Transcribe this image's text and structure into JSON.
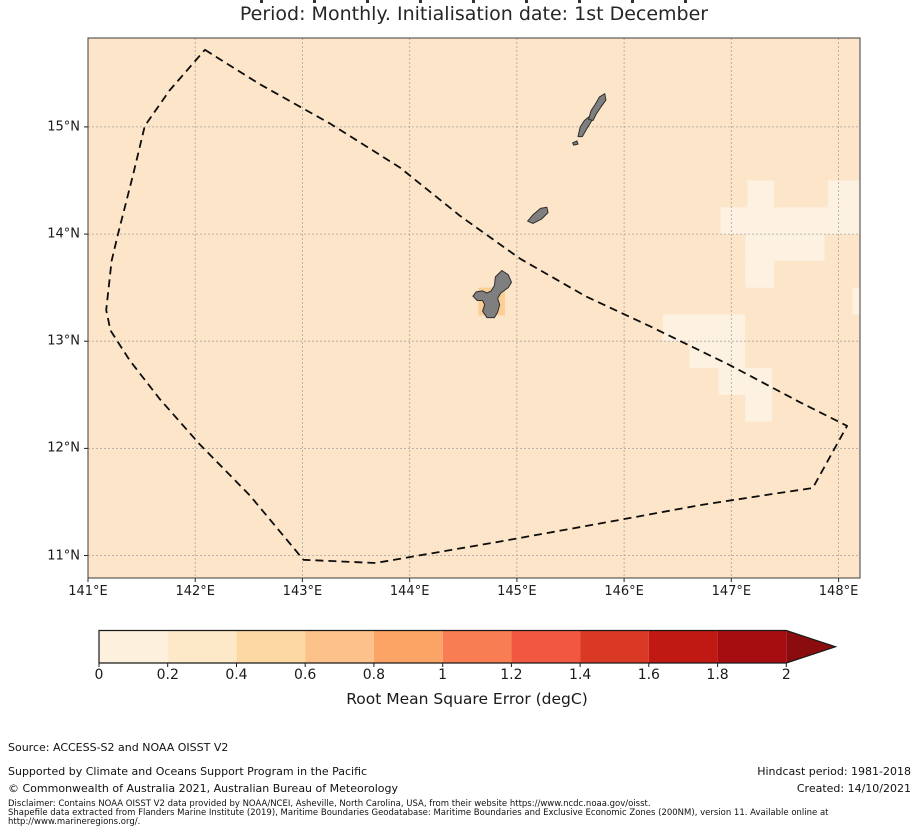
{
  "title": {
    "text": "Period: Monthly. Initialisation date: 1st December"
  },
  "map": {
    "xlim": [
      141.0,
      148.2
    ],
    "ylim": [
      10.79,
      15.83
    ],
    "x_ticks": [
      "141°E",
      "142°E",
      "143°E",
      "144°E",
      "145°E",
      "146°E",
      "147°E",
      "148°E"
    ],
    "x_tick_values": [
      141,
      142,
      143,
      144,
      145,
      146,
      147,
      148
    ],
    "y_ticks": [
      "15°N",
      "14°N",
      "13°N",
      "12°N",
      "11°N"
    ],
    "y_tick_values": [
      15,
      14,
      13,
      12,
      11
    ],
    "colors": {
      "ocean_base": "#fce5c8",
      "light_patch": "#fdf2e2",
      "guam_cell": "#fbcf96",
      "island_fill": "#7f7f7f",
      "island_stroke": "#2f2f2f",
      "grid": "#999999",
      "eez": "#0d0d0d",
      "spine": "#3c3c3c"
    },
    "light_patches": [
      [
        147.15,
        14.25,
        147.4,
        14.5
      ],
      [
        147.9,
        14.25,
        148.2,
        14.5
      ],
      [
        146.9,
        14.0,
        148.2,
        14.25
      ],
      [
        147.13,
        13.75,
        147.87,
        14.0
      ],
      [
        147.13,
        13.5,
        147.4,
        13.75
      ],
      [
        148.13,
        13.25,
        148.2,
        13.5
      ],
      [
        146.36,
        13.0,
        147.13,
        13.25
      ],
      [
        146.61,
        12.75,
        147.13,
        13.0
      ],
      [
        146.88,
        12.5,
        147.38,
        12.75
      ],
      [
        147.13,
        12.25,
        147.38,
        12.5
      ]
    ],
    "highlight_cells": [
      [
        144.64,
        13.24,
        144.89,
        13.5
      ]
    ],
    "eez_polygon": [
      [
        142.09,
        15.72
      ],
      [
        142.6,
        15.4
      ],
      [
        143.26,
        15.03
      ],
      [
        143.91,
        14.62
      ],
      [
        144.47,
        14.17
      ],
      [
        145.03,
        13.77
      ],
      [
        145.64,
        13.42
      ],
      [
        146.24,
        13.14
      ],
      [
        146.98,
        12.78
      ],
      [
        147.64,
        12.43
      ],
      [
        148.08,
        12.21
      ],
      [
        147.76,
        11.63
      ],
      [
        147.36,
        11.57
      ],
      [
        146.71,
        11.47
      ],
      [
        145.78,
        11.3
      ],
      [
        144.84,
        11.13
      ],
      [
        143.68,
        10.93
      ],
      [
        143.01,
        10.96
      ],
      [
        142.51,
        11.56
      ],
      [
        142.04,
        12.04
      ],
      [
        141.67,
        12.46
      ],
      [
        141.39,
        12.82
      ],
      [
        141.21,
        13.1
      ],
      [
        141.17,
        13.29
      ],
      [
        141.22,
        13.75
      ],
      [
        141.28,
        14.0
      ],
      [
        141.42,
        14.55
      ],
      [
        141.53,
        15.01
      ],
      [
        141.76,
        15.34
      ]
    ],
    "islands": {
      "guam": [
        [
          144.86,
          13.66
        ],
        [
          144.92,
          13.62
        ],
        [
          144.95,
          13.55
        ],
        [
          144.92,
          13.5
        ],
        [
          144.85,
          13.45
        ],
        [
          144.82,
          13.4
        ],
        [
          144.84,
          13.34
        ],
        [
          144.82,
          13.27
        ],
        [
          144.79,
          13.22
        ],
        [
          144.72,
          13.22
        ],
        [
          144.68,
          13.28
        ],
        [
          144.7,
          13.34
        ],
        [
          144.68,
          13.38
        ],
        [
          144.63,
          13.38
        ],
        [
          144.59,
          13.42
        ],
        [
          144.62,
          13.46
        ],
        [
          144.68,
          13.47
        ],
        [
          144.72,
          13.45
        ],
        [
          144.76,
          13.47
        ],
        [
          144.79,
          13.52
        ],
        [
          144.8,
          13.6
        ]
      ],
      "rota": [
        [
          145.1,
          14.12
        ],
        [
          145.15,
          14.18
        ],
        [
          145.22,
          14.24
        ],
        [
          145.28,
          14.25
        ],
        [
          145.29,
          14.2
        ],
        [
          145.23,
          14.14
        ],
        [
          145.15,
          14.1
        ]
      ],
      "aguijan": [
        [
          145.52,
          14.85
        ],
        [
          145.56,
          14.87
        ],
        [
          145.57,
          14.84
        ],
        [
          145.53,
          14.83
        ]
      ],
      "tinian": [
        [
          145.57,
          14.91
        ],
        [
          145.59,
          15.0
        ],
        [
          145.63,
          15.06
        ],
        [
          145.68,
          15.1
        ],
        [
          145.7,
          15.06
        ],
        [
          145.65,
          14.98
        ],
        [
          145.61,
          14.91
        ]
      ],
      "saipan": [
        [
          145.67,
          15.07
        ],
        [
          145.69,
          15.15
        ],
        [
          145.73,
          15.21
        ],
        [
          145.77,
          15.28
        ],
        [
          145.82,
          15.31
        ],
        [
          145.83,
          15.25
        ],
        [
          145.78,
          15.18
        ],
        [
          145.74,
          15.12
        ],
        [
          145.71,
          15.06
        ]
      ]
    }
  },
  "colorbar": {
    "label": "Root Mean Square Error (degC)",
    "ticks": [
      "0",
      "0.2",
      "0.4",
      "0.6",
      "0.8",
      "1",
      "1.2",
      "1.4",
      "1.6",
      "1.8",
      "2"
    ],
    "segment_colors": [
      "#fdf1dd",
      "#fde8c8",
      "#fcd8a3",
      "#fcc289",
      "#fba466",
      "#f97d52",
      "#f2573f",
      "#da3a25",
      "#c01812",
      "#a60d11"
    ],
    "arrow_color": "#8b0c0f",
    "outline_color": "#1a1a1a"
  },
  "footer": {
    "source": "Source: ACCESS-S2 and NOAA OISST V2",
    "supported": "Supported by Climate and Oceans Support Program in the Pacific",
    "copyright": "© Commonwealth of Australia 2021, Australian Bureau of Meteorology",
    "hindcast": "Hindcast period: 1981-2018",
    "created": "Created: 14/10/2021",
    "disclaimer_line1": "Disclaimer: Contains NOAA OISST V2 data provided by NOAA/NCEI, Asheville, North Carolina, USA, from their website https://www.ncdc.noaa.gov/oisst.",
    "disclaimer_line2": "Shapefile data extracted from Flanders Marine Institute (2019), Maritime Boundaries Geodatabase: Maritime Boundaries and Exclusive Economic Zones (200NM), version 11. Available online at",
    "disclaimer_line3": "http://www.marineregions.org/."
  },
  "chart_data": {
    "type": "heatmap",
    "title": "Period: Monthly. Initialisation date: 1st December",
    "xlabel": "",
    "ylabel": "",
    "x_axis": {
      "tick_labels": [
        "141°E",
        "142°E",
        "143°E",
        "144°E",
        "145°E",
        "146°E",
        "147°E",
        "148°E"
      ],
      "range": [
        141.0,
        148.2
      ]
    },
    "y_axis": {
      "tick_labels": [
        "11°N",
        "12°N",
        "13°N",
        "14°N",
        "15°N"
      ],
      "range": [
        10.79,
        15.83
      ]
    },
    "grid": true,
    "colorbar": {
      "label": "Root Mean Square Error (degC)",
      "ticks": [
        0,
        0.2,
        0.4,
        0.6,
        0.8,
        1,
        1.2,
        1.4,
        1.6,
        1.8,
        2
      ],
      "extend": "max"
    },
    "field_regions": [
      {
        "region": "most of plotted domain",
        "rmse_degC": 0.3
      },
      {
        "region": "scattered cells 146.4-148.2E, 12.25-14.5N (east of Marianas)",
        "rmse_degC": 0.1
      },
      {
        "region": "single grid cell over Guam 144.64-144.89E, 13.24-13.5N",
        "rmse_degC": 0.5
      }
    ],
    "overlays": [
      "dashed EEZ boundary polygon",
      "Mariana Islands land (Guam, Rota, Aguijan, Tinian, Saipan)"
    ]
  }
}
